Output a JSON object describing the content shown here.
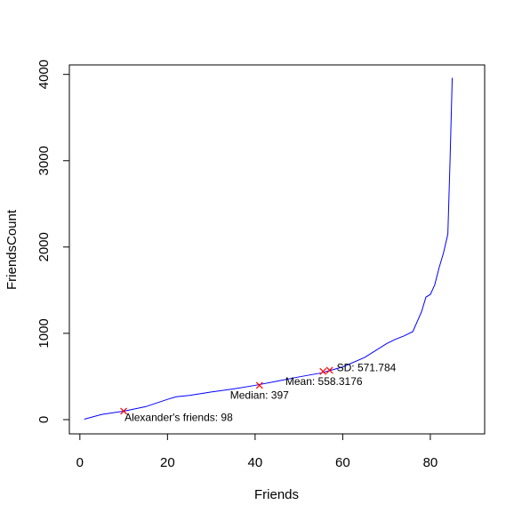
{
  "chart_data": {
    "type": "line",
    "title": "",
    "xlabel": "Friends",
    "ylabel": "FriendsCount",
    "xlim": [
      -2.4,
      92.4
    ],
    "ylim": [
      -165,
      4110
    ],
    "xticks": [
      0,
      20,
      40,
      60,
      80
    ],
    "yticks": [
      0,
      1000,
      2000,
      3000,
      4000
    ],
    "xtick_labels": [
      "0",
      "20",
      "40",
      "60",
      "80"
    ],
    "ytick_labels": [
      "0",
      "1000",
      "2000",
      "3000",
      "4000"
    ],
    "grid": false,
    "line_color": "#0000ff",
    "marker_color": "#ff0000",
    "series": [
      {
        "x": [
          1,
          5,
          10,
          15,
          20,
          22,
          25,
          30,
          35,
          40,
          45,
          50,
          55,
          60,
          65,
          70,
          72,
          74,
          76,
          78,
          79,
          80,
          81,
          82,
          83,
          84,
          84.5,
          85
        ],
        "y": [
          5,
          60,
          98,
          150,
          235,
          265,
          280,
          320,
          355,
          397,
          445,
          495,
          540,
          610,
          720,
          880,
          930,
          970,
          1020,
          1250,
          1420,
          1450,
          1560,
          1760,
          1930,
          2150,
          3000,
          3960
        ]
      }
    ],
    "annotations": [
      {
        "label": "Alexander's friends: 98",
        "x": 10,
        "y": 98
      },
      {
        "label": "Median: 397",
        "x": 41,
        "y": 397
      },
      {
        "label": "Mean: 558.3176",
        "x": 55.5,
        "y": 558.3176
      },
      {
        "label": "SD: 571.784",
        "x": 57,
        "y": 571.784
      }
    ]
  }
}
